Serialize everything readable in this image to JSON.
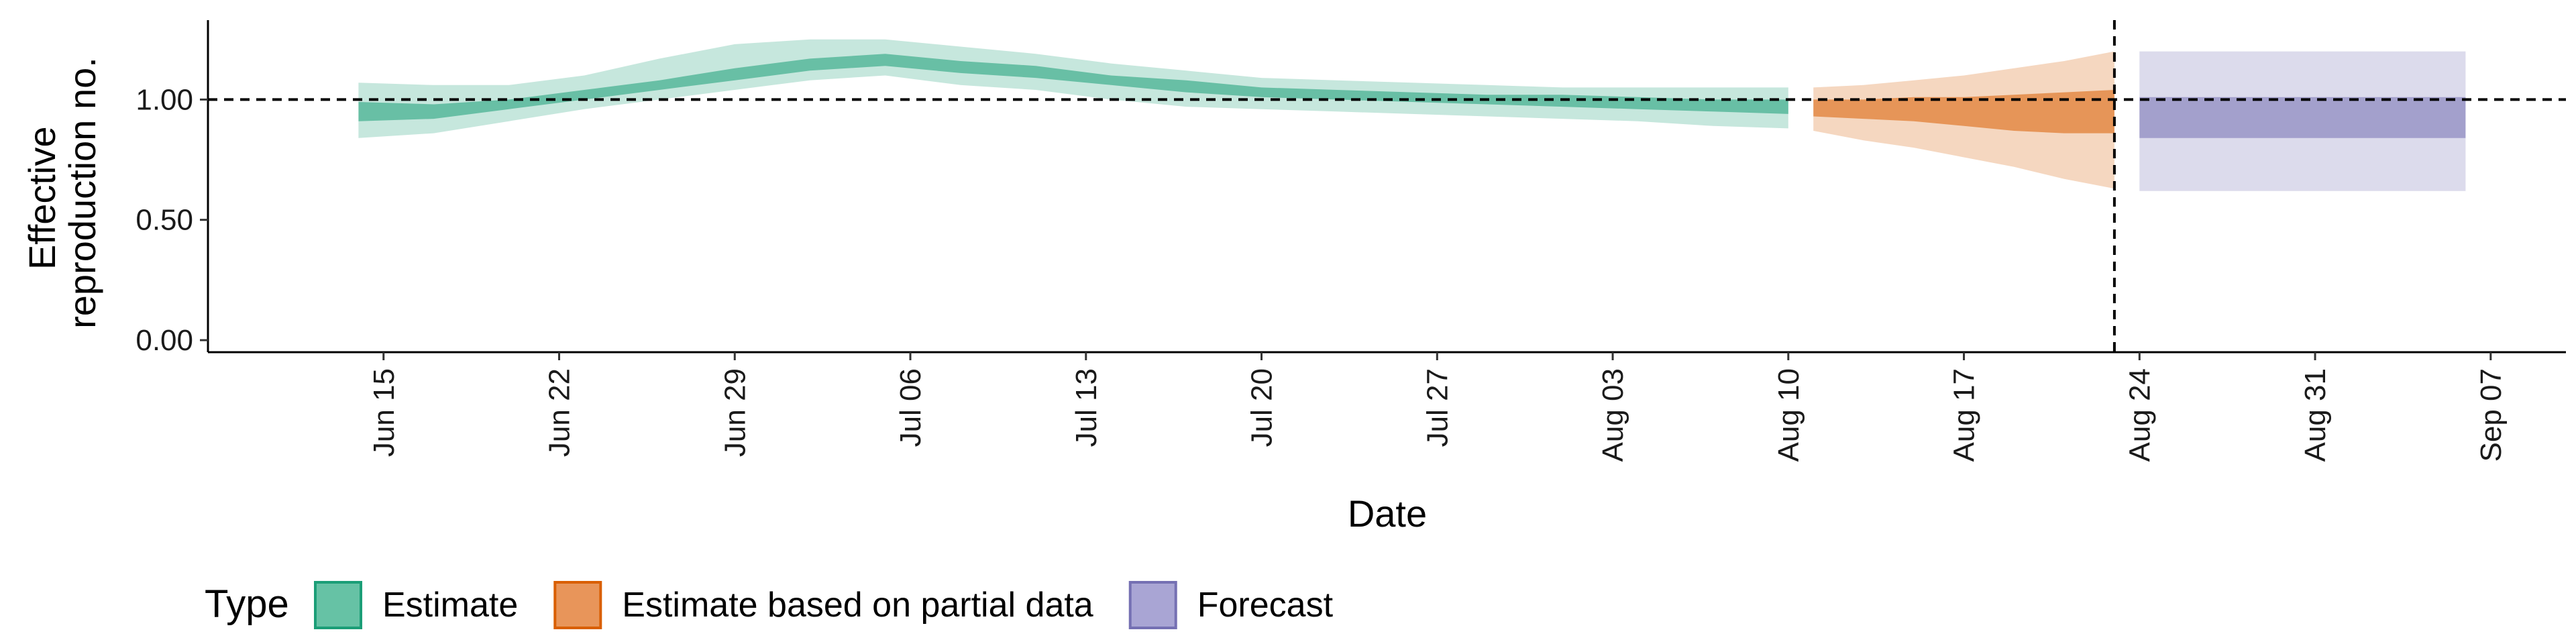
{
  "chart_data": {
    "type": "area",
    "xlabel": "Date",
    "ylabel_lines": [
      "Effective",
      "reproduction no."
    ],
    "y_ticks": [
      "0.00",
      "0.50",
      "1.00"
    ],
    "y_tick_values": [
      0,
      0.5,
      1.0
    ],
    "ylim": [
      -0.05,
      1.33
    ],
    "x_ticks": [
      {
        "label": "Jun 15",
        "date": "2020-06-15"
      },
      {
        "label": "Jun 22",
        "date": "2020-06-22"
      },
      {
        "label": "Jun 29",
        "date": "2020-06-29"
      },
      {
        "label": "Jul 06",
        "date": "2020-07-06"
      },
      {
        "label": "Jul 13",
        "date": "2020-07-13"
      },
      {
        "label": "Jul 20",
        "date": "2020-07-20"
      },
      {
        "label": "Jul 27",
        "date": "2020-07-27"
      },
      {
        "label": "Aug 03",
        "date": "2020-08-03"
      },
      {
        "label": "Aug 10",
        "date": "2020-08-10"
      },
      {
        "label": "Aug 17",
        "date": "2020-08-17"
      },
      {
        "label": "Aug 24",
        "date": "2020-08-24"
      },
      {
        "label": "Aug 31",
        "date": "2020-08-31"
      },
      {
        "label": "Sep 07",
        "date": "2020-09-07"
      }
    ],
    "xlim": [
      "2020-06-08",
      "2020-09-10"
    ],
    "reference_hline": 1.0,
    "reference_vline": "2020-08-23",
    "legend": {
      "title": "Type",
      "position": "bottom-left",
      "entries": [
        {
          "label": "Estimate",
          "fill": "#66c2a5",
          "stroke": "#1b9e77"
        },
        {
          "label": "Estimate based on partial data",
          "fill": "#e8955a",
          "stroke": "#d95f02"
        },
        {
          "label": "Forecast",
          "fill": "#a9a5d4",
          "stroke": "#7570b3"
        }
      ]
    },
    "series": [
      {
        "name": "Estimate",
        "color": "#1b9e77",
        "x": [
          "2020-06-14",
          "2020-06-17",
          "2020-06-20",
          "2020-06-23",
          "2020-06-26",
          "2020-06-29",
          "2020-07-02",
          "2020-07-05",
          "2020-07-08",
          "2020-07-11",
          "2020-07-14",
          "2020-07-17",
          "2020-07-20",
          "2020-07-23",
          "2020-07-26",
          "2020-07-29",
          "2020-08-01",
          "2020-08-04",
          "2020-08-07",
          "2020-08-10"
        ],
        "lower_90": [
          0.84,
          0.86,
          0.91,
          0.96,
          1.0,
          1.04,
          1.08,
          1.1,
          1.06,
          1.04,
          1.0,
          0.97,
          0.96,
          0.95,
          0.94,
          0.93,
          0.92,
          0.91,
          0.89,
          0.88
        ],
        "upper_90": [
          1.07,
          1.06,
          1.06,
          1.1,
          1.17,
          1.23,
          1.25,
          1.25,
          1.22,
          1.19,
          1.15,
          1.12,
          1.09,
          1.08,
          1.07,
          1.06,
          1.05,
          1.05,
          1.05,
          1.05
        ],
        "lower_50": [
          0.91,
          0.92,
          0.96,
          1.0,
          1.04,
          1.08,
          1.12,
          1.14,
          1.11,
          1.09,
          1.06,
          1.03,
          1.01,
          1.0,
          0.99,
          0.98,
          0.97,
          0.96,
          0.95,
          0.94
        ],
        "upper_50": [
          0.99,
          0.98,
          1.0,
          1.04,
          1.08,
          1.13,
          1.17,
          1.19,
          1.16,
          1.14,
          1.1,
          1.08,
          1.05,
          1.04,
          1.03,
          1.02,
          1.02,
          1.01,
          1.0,
          1.0
        ]
      },
      {
        "name": "Estimate based on partial data",
        "color": "#d95f02",
        "x": [
          "2020-08-11",
          "2020-08-13",
          "2020-08-15",
          "2020-08-17",
          "2020-08-19",
          "2020-08-21",
          "2020-08-23"
        ],
        "lower_90": [
          0.87,
          0.83,
          0.8,
          0.76,
          0.72,
          0.67,
          0.63
        ],
        "upper_90": [
          1.05,
          1.06,
          1.08,
          1.1,
          1.13,
          1.16,
          1.2
        ],
        "lower_50": [
          0.93,
          0.92,
          0.91,
          0.89,
          0.87,
          0.86,
          0.86
        ],
        "upper_50": [
          1.0,
          1.0,
          1.01,
          1.01,
          1.02,
          1.03,
          1.04
        ]
      },
      {
        "name": "Forecast",
        "color": "#7570b3",
        "x": [
          "2020-08-24",
          "2020-09-06"
        ],
        "lower_90": [
          0.62,
          0.62
        ],
        "upper_90": [
          1.2,
          1.2
        ],
        "lower_50": [
          0.84,
          0.84
        ],
        "upper_50": [
          1.01,
          1.01
        ]
      }
    ]
  }
}
